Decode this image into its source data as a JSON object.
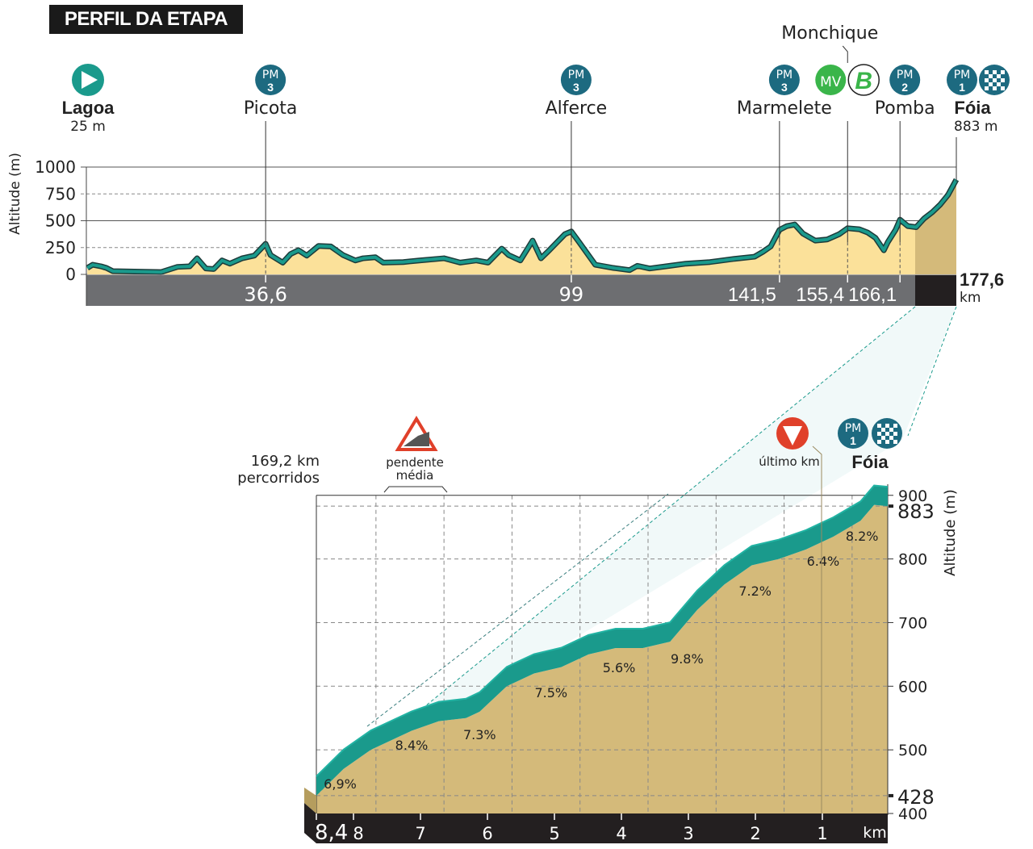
{
  "title": "PERFIL DA ETAPA",
  "colors": {
    "teal": "#1a9a8c",
    "profile_fill": "#fbe19a",
    "climb_fill": "#d4ba7a",
    "axis_bar": "#6d6e71",
    "dark": "#231f20",
    "mv_green": "#3ab54a",
    "pm_blue": "#1d6a80",
    "last_km_red": "#e0402a"
  },
  "chart_data": [
    {
      "type": "area",
      "ylabel": "Altitude (m)",
      "ylim": [
        0,
        1000
      ],
      "yticks": [
        0,
        250,
        500,
        750,
        1000
      ],
      "xlim": [
        0,
        177.6
      ],
      "x_km": [
        0.2,
        1.3,
        3.0,
        4.1,
        5.4,
        15.3,
        18.6,
        21.1,
        22.6,
        24.4,
        26.0,
        27.7,
        29.3,
        31.8,
        34.3,
        36.6,
        37.6,
        40.1,
        41.7,
        43.3,
        45.0,
        47.4,
        49.9,
        52.4,
        54.9,
        56.5,
        59.0,
        60.6,
        64.7,
        68.0,
        73.0,
        76.3,
        79.6,
        82.0,
        84.8,
        86.2,
        88.6,
        91.1,
        92.8,
        94.4,
        97.7,
        99.0,
        100.6,
        103.9,
        107.6,
        110.9,
        112.5,
        115.0,
        119.1,
        122.4,
        127.3,
        132.3,
        136.4,
        138.1,
        139.7,
        141.5,
        143.0,
        144.6,
        146.3,
        148.8,
        151.2,
        153.7,
        155.4,
        157.8,
        159.5,
        161.1,
        162.8,
        163.6,
        165.2,
        166.1,
        167.7,
        169.4,
        171.0,
        172.7,
        174.3,
        175.9,
        177.6
      ],
      "altitude_m": [
        60,
        90,
        75,
        60,
        30,
        22,
        70,
        75,
        150,
        55,
        50,
        130,
        100,
        150,
        175,
        285,
        180,
        110,
        190,
        225,
        175,
        265,
        260,
        180,
        130,
        150,
        160,
        110,
        115,
        130,
        150,
        110,
        130,
        110,
        240,
        180,
        130,
        315,
        150,
        220,
        375,
        400,
        300,
        90,
        60,
        40,
        80,
        55,
        80,
        100,
        115,
        145,
        165,
        210,
        260,
        415,
        450,
        465,
        380,
        315,
        325,
        375,
        430,
        420,
        390,
        340,
        225,
        300,
        415,
        510,
        450,
        440,
        520,
        580,
        650,
        740,
        883
      ],
      "start": {
        "name": "Lagoa",
        "alt": "25 m"
      },
      "finish": {
        "name": "Fóia",
        "alt": "883 m",
        "km": "177,6",
        "unit": "km"
      },
      "km_marks": [
        "36,6",
        "99",
        "141,5",
        "155,4",
        "166,1"
      ],
      "points": [
        {
          "km": 36.6,
          "name": "Picota",
          "badge": "PM",
          "cat": "3",
          "type": "pm"
        },
        {
          "km": 99,
          "name": "Alferce",
          "badge": "PM",
          "cat": "3",
          "type": "pm"
        },
        {
          "km": 141.5,
          "name": "Marmelete",
          "badge": "PM",
          "cat": "3",
          "type": "pm"
        },
        {
          "km": 155.4,
          "name": "Monchique",
          "badge": "MV",
          "bonus": "B",
          "type": "mv"
        },
        {
          "km": 166.1,
          "name": "Pomba",
          "badge": "PM",
          "cat": "2",
          "type": "pm"
        },
        {
          "km": 177.6,
          "name": "Fóia",
          "badge": "PM",
          "cat": "1",
          "type": "finish"
        }
      ],
      "zoom_from_km": 169.2
    },
    {
      "type": "area",
      "ylabel": "Altitude (m)",
      "ylim": [
        400,
        900
      ],
      "yticks": [
        "400",
        "500",
        "600",
        "700",
        "800",
        "900"
      ],
      "ymarks": [
        "428",
        "883"
      ],
      "xlabel": "km",
      "xticks": [
        "8,4",
        "8",
        "7",
        "6",
        "5",
        "4",
        "3",
        "2",
        "1"
      ],
      "start_label": [
        "169,2 km",
        "percorridos"
      ],
      "avg_grade_label": [
        "pendente",
        "média"
      ],
      "last_km_label": "último km",
      "finish_name": "Fóia",
      "finish_badge": {
        "badge": "PM",
        "cat": "1"
      },
      "km_to_go": [
        8.4,
        8.0,
        7.6,
        7.2,
        7.0,
        6.6,
        6.2,
        6.0,
        5.6,
        5.2,
        4.8,
        4.4,
        4.0,
        3.6,
        3.2,
        2.8,
        2.4,
        2.0,
        1.6,
        1.2,
        0.8,
        0.4,
        0.2,
        0.0
      ],
      "altitude_m": [
        428,
        470,
        500,
        520,
        530,
        545,
        550,
        560,
        600,
        620,
        630,
        650,
        660,
        660,
        670,
        720,
        760,
        790,
        800,
        815,
        835,
        860,
        885,
        883
      ],
      "segment_grades": [
        "6,9%",
        "8.4%",
        "7.3%",
        "7.5%",
        "5.6%",
        "9.8%",
        "7.2%",
        "6.4%",
        "8.2%"
      ]
    }
  ]
}
